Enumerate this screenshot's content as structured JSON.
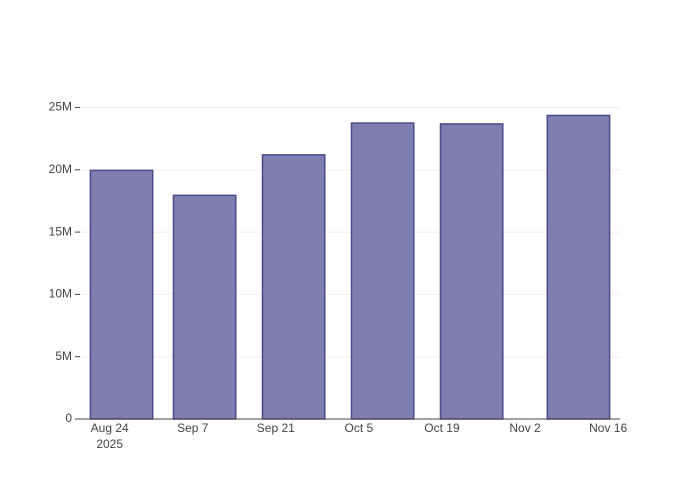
{
  "chart_data": {
    "type": "bar",
    "x": [
      "2025-08-26",
      "2025-09-09",
      "2025-09-24",
      "2025-10-09",
      "2025-10-24",
      "2025-11-11"
    ],
    "values": [
      19950000,
      17950000,
      21200000,
      23750000,
      23680000,
      24360000
    ],
    "color": "#7e7eb0",
    "edge_color": "#4b4b8c",
    "xlim": [
      "2025-08-19",
      "2025-11-18"
    ],
    "xticks": [
      {
        "value": "2025-08-24",
        "label": "Aug 24"
      },
      {
        "value": "2025-09-07",
        "label": "Sep 7"
      },
      {
        "value": "2025-09-21",
        "label": "Sep 21"
      },
      {
        "value": "2025-10-05",
        "label": "Oct 5"
      },
      {
        "value": "2025-10-19",
        "label": "Oct 19"
      },
      {
        "value": "2025-11-02",
        "label": "Nov 2"
      },
      {
        "value": "2025-11-16",
        "label": "Nov 16"
      }
    ],
    "xtick_sublabel": "2025",
    "ylim": [
      0,
      25600000
    ],
    "yticks": [
      0,
      {
        "value": 5000000,
        "label": "5M"
      },
      {
        "value": 10000000,
        "label": "10M"
      },
      {
        "value": 15000000,
        "label": "15M"
      },
      {
        "value": 20000000,
        "label": "20M"
      },
      {
        "value": 25000000,
        "label": "25M"
      }
    ],
    "grid": true
  }
}
